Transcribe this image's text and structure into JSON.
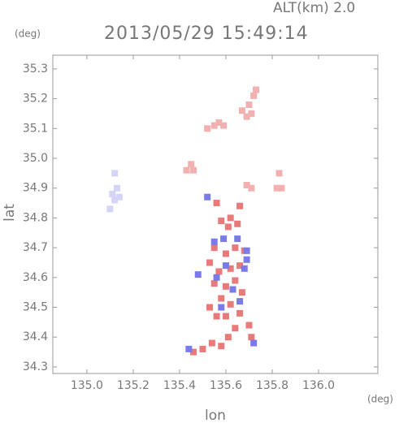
{
  "chart_data": {
    "type": "scatter",
    "title": "2013/05/29 15:49:14",
    "annotation": "ALT(km) 2.0",
    "y_unit": "(deg)",
    "x_unit": "(deg)",
    "x_label": "lon",
    "y_label": "lat",
    "xlim": [
      134.853,
      136.256
    ],
    "ylim": [
      34.278,
      35.346
    ],
    "xticks": [
      {
        "value": 135.0,
        "label": "135.0"
      },
      135.2,
      135.4,
      135.6,
      135.8,
      {
        "value": 136.0,
        "label": "136.0"
      }
    ],
    "yticks": [
      34.3,
      34.4,
      34.5,
      34.6,
      34.7,
      34.8,
      34.9,
      {
        "value": 35.0,
        "label": "35.0"
      },
      35.1,
      35.2,
      35.3
    ],
    "series": [
      {
        "color": "#f2b0b0",
        "x": [
          135.73,
          135.72,
          135.7,
          135.71,
          135.69,
          135.67,
          135.55,
          135.52,
          135.59,
          135.57,
          135.43,
          135.45,
          135.71,
          135.69,
          135.84,
          135.82,
          135.83,
          135.46
        ],
        "y": [
          35.23,
          35.21,
          35.18,
          35.15,
          35.14,
          35.16,
          35.11,
          35.1,
          35.11,
          35.12,
          34.96,
          34.98,
          34.9,
          34.91,
          34.9,
          34.9,
          34.95,
          34.96
        ]
      },
      {
        "color": "#d4d4f8",
        "x": [
          135.12,
          135.13,
          135.11,
          135.12,
          135.1,
          135.14
        ],
        "y": [
          34.95,
          34.9,
          34.88,
          34.86,
          34.83,
          34.87
        ]
      },
      {
        "color": "#e87a7a",
        "x": [
          135.56,
          135.58,
          135.62,
          135.61,
          135.65,
          135.66,
          135.55,
          135.6,
          135.64,
          135.68,
          135.53,
          135.57,
          135.62,
          135.66,
          135.55,
          135.6,
          135.64,
          135.67,
          135.58,
          135.62,
          135.56,
          135.6,
          135.66,
          135.64,
          135.7,
          135.61,
          135.58,
          135.5,
          135.46,
          135.54,
          135.71,
          135.53
        ],
        "y": [
          34.85,
          34.79,
          34.8,
          34.77,
          34.78,
          34.84,
          34.7,
          34.68,
          34.7,
          34.69,
          34.65,
          34.62,
          34.63,
          34.64,
          34.58,
          34.57,
          34.59,
          34.55,
          34.53,
          34.51,
          34.47,
          34.47,
          34.48,
          34.43,
          34.44,
          34.4,
          34.37,
          34.36,
          34.35,
          34.38,
          34.4,
          34.5
        ]
      },
      {
        "color": "#7a7aea",
        "x": [
          135.52,
          135.55,
          135.59,
          135.65,
          135.69,
          135.6,
          135.68,
          135.56,
          135.63,
          135.58,
          135.66,
          135.72,
          135.44,
          135.48,
          135.69
        ],
        "y": [
          34.87,
          34.72,
          34.73,
          34.73,
          34.69,
          34.64,
          34.63,
          34.6,
          34.56,
          34.5,
          34.52,
          34.38,
          34.36,
          34.61,
          34.66
        ]
      }
    ]
  }
}
